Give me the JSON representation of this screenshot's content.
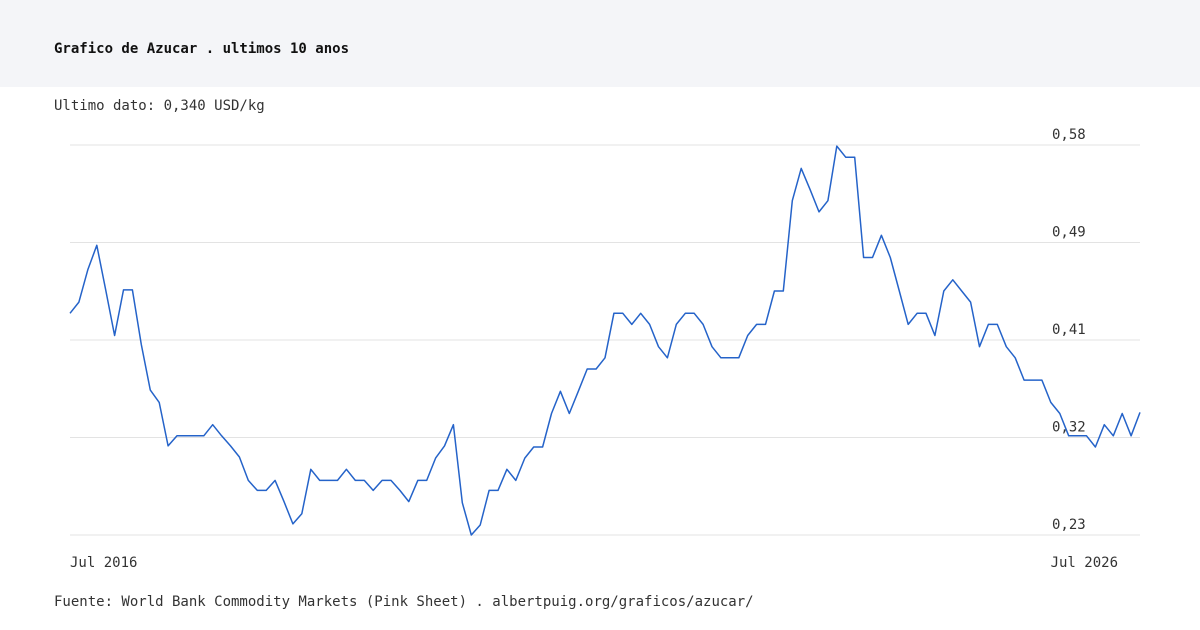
{
  "header": {
    "title": "Grafico de Azucar . ultimos 10 anos"
  },
  "chart_data": {
    "type": "line",
    "subtitle": "Ultimo dato: 0,340 USD/kg",
    "source": "Fuente: World Bank Commodity Markets (Pink Sheet) . albertpuig.org/graficos/azucar/",
    "categories": [
      "Jul 2016",
      null,
      null,
      null,
      null,
      null,
      null,
      null,
      null,
      null,
      null,
      null,
      null,
      null,
      null,
      null,
      null,
      null,
      null,
      null,
      null,
      null,
      null,
      null,
      null,
      null,
      null,
      null,
      null,
      null,
      null,
      null,
      null,
      null,
      null,
      null,
      null,
      null,
      null,
      null,
      null,
      null,
      null,
      null,
      null,
      null,
      null,
      null,
      null,
      null,
      null,
      null,
      null,
      null,
      null,
      null,
      null,
      null,
      null,
      null,
      null,
      null,
      null,
      null,
      null,
      null,
      null,
      null,
      null,
      null,
      null,
      null,
      null,
      null,
      null,
      null,
      null,
      null,
      null,
      null,
      null,
      null,
      null,
      null,
      null,
      null,
      null,
      null,
      null,
      null,
      null,
      null,
      null,
      null,
      null,
      null,
      null,
      null,
      null,
      null,
      null,
      null,
      null,
      null,
      null,
      null,
      null,
      null,
      null,
      null,
      null,
      null,
      null,
      null,
      null,
      null,
      null,
      null,
      null,
      null,
      "Jul 2026"
    ],
    "series": [
      {
        "color": "#2563c9",
        "values": [
          0.429,
          0.439,
          0.468,
          0.49,
          0.45,
          0.409,
          0.45,
          0.45,
          0.401,
          0.36,
          0.349,
          0.31,
          0.319,
          0.319,
          0.319,
          0.319,
          0.329,
          0.319,
          0.31,
          0.3,
          0.279,
          0.27,
          0.27,
          0.279,
          0.26,
          0.24,
          0.249,
          0.289,
          0.279,
          0.279,
          0.279,
          0.289,
          0.279,
          0.279,
          0.27,
          0.279,
          0.279,
          0.27,
          0.26,
          0.279,
          0.279,
          0.299,
          0.31,
          0.329,
          0.259,
          0.23,
          0.239,
          0.27,
          0.27,
          0.289,
          0.279,
          0.299,
          0.309,
          0.309,
          0.339,
          0.359,
          0.339,
          0.359,
          0.379,
          0.379,
          0.389,
          0.429,
          0.429,
          0.419,
          0.429,
          0.419,
          0.399,
          0.389,
          0.419,
          0.429,
          0.429,
          0.419,
          0.399,
          0.389,
          0.389,
          0.389,
          0.409,
          0.419,
          0.419,
          0.449,
          0.449,
          0.53,
          0.559,
          0.54,
          0.52,
          0.53,
          0.579,
          0.569,
          0.569,
          0.479,
          0.479,
          0.499,
          0.479,
          0.449,
          0.419,
          0.429,
          0.429,
          0.409,
          0.449,
          0.459,
          0.449,
          0.439,
          0.399,
          0.419,
          0.419,
          0.399,
          0.389,
          0.369,
          0.369,
          0.369,
          0.349,
          0.339,
          0.319,
          0.319,
          0.319,
          0.309,
          0.329,
          0.319,
          0.339,
          0.319,
          0.34
        ]
      }
    ],
    "ylim": [
      0.23,
      0.58
    ],
    "yticks": [
      {
        "value": 0.23,
        "label": "0,23"
      },
      {
        "value": 0.3175,
        "label": "0,32"
      },
      {
        "value": 0.405,
        "label": "0,41"
      },
      {
        "value": 0.4925,
        "label": "0,49"
      },
      {
        "value": 0.58,
        "label": "0,58"
      }
    ],
    "grid": true
  }
}
